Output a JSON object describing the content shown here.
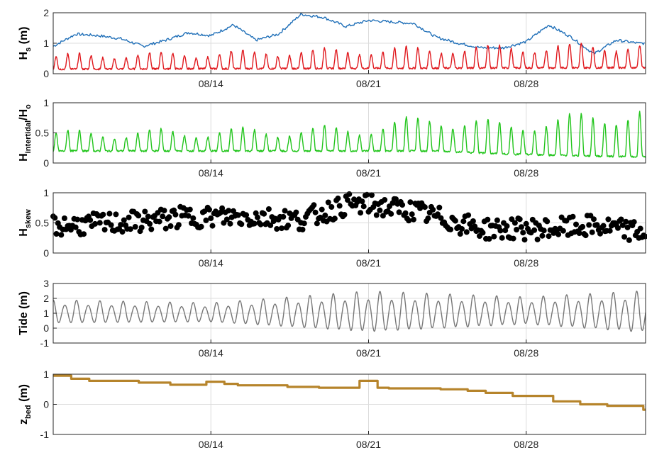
{
  "colors": {
    "hs": "#1f6fb8",
    "hs_infragravity": "#e0191e",
    "hintertidal": "#22c51c",
    "hskew": "#000000",
    "tide": "#777777",
    "zbed": "#b6842b",
    "grid": "#dcdcdc",
    "axis": "#262626"
  },
  "chart_data": [
    {
      "type": "line",
      "ylabel_main": "H",
      "ylabel_sub": "s",
      "ylabel_rest": " (m)",
      "ylim": [
        0,
        2
      ],
      "yticks": [
        0,
        1,
        2
      ],
      "xlim": [
        "08/07",
        "09/02"
      ],
      "xtick_labels": [
        "08/14",
        "08/21",
        "08/28"
      ],
      "grid": true,
      "series": [
        {
          "x_days_from_aug7": [
            0,
            1,
            2,
            3,
            4,
            5,
            6,
            7,
            8,
            9,
            10,
            11,
            12,
            13,
            14,
            15,
            16,
            17,
            18,
            19,
            20,
            21,
            22,
            23,
            24,
            25,
            26
          ],
          "values": [
            0.9,
            1.3,
            1.25,
            1.15,
            0.9,
            1.1,
            1.35,
            1.25,
            1.6,
            1.1,
            1.3,
            1.95,
            1.85,
            1.55,
            1.75,
            1.7,
            1.65,
            1.2,
            1.0,
            0.85,
            0.85,
            1.05,
            1.6,
            1.2,
            0.65,
            1.1,
            1.0
          ]
        },
        {
          "pattern": "diurnal",
          "x_days_from_aug7": [
            0,
            26
          ],
          "peak_values": [
            0.65,
            1.05
          ],
          "trough_values": [
            0.15,
            0.2
          ]
        }
      ]
    },
    {
      "type": "line",
      "ylabel_main": "H",
      "ylabel_sub": "intertidal",
      "ylabel_rest": "/H",
      "ylabel_sub2": "o",
      "ylim": [
        0,
        1
      ],
      "yticks": [
        0,
        0.5,
        1
      ],
      "xlim": [
        "08/07",
        "09/02"
      ],
      "xtick_labels": [
        "08/14",
        "08/21",
        "08/28"
      ],
      "grid": true,
      "series": [
        {
          "pattern": "diurnal",
          "x_days_from_aug7": [
            0,
            10,
            14,
            17,
            20,
            26
          ],
          "peak_values": [
            0.55,
            0.6,
            0.65,
            0.85,
            0.7,
            0.95
          ],
          "trough_values": [
            0.2,
            0.2,
            0.2,
            0.2,
            0.15,
            0.1
          ]
        }
      ]
    },
    {
      "type": "scatter",
      "ylabel_main": "H",
      "ylabel_sub": "skew",
      "ylabel_rest": "",
      "ylim": [
        0,
        1
      ],
      "yticks": [
        0,
        0.5,
        1
      ],
      "xlim": [
        "08/07",
        "09/02"
      ],
      "xtick_labels": [
        "08/14",
        "08/21",
        "08/28"
      ],
      "grid": true,
      "series": [
        {
          "x_days_from_aug7": [
            0,
            3,
            6,
            9,
            11,
            13,
            14,
            16,
            19,
            22,
            24,
            26
          ],
          "mean_values": [
            0.45,
            0.5,
            0.6,
            0.6,
            0.55,
            0.8,
            0.8,
            0.7,
            0.4,
            0.4,
            0.45,
            0.35
          ],
          "spread": 0.18,
          "points_per_day": 14
        }
      ]
    },
    {
      "type": "line",
      "ylabel_main": "Tide (m)",
      "ylabel_sub": "",
      "ylabel_rest": "",
      "ylim": [
        -1,
        3
      ],
      "yticks": [
        -1,
        0,
        1,
        2,
        3
      ],
      "xlim": [
        "08/07",
        "09/02"
      ],
      "xtick_labels": [
        "08/14",
        "08/21",
        "08/28"
      ],
      "grid": true,
      "series": [
        {
          "pattern": "semidiurnal",
          "x_days_from_aug7": [
            0,
            7,
            14,
            21,
            26
          ],
          "high_values": [
            1.9,
            1.7,
            2.5,
            2.1,
            2.5
          ],
          "low_values": [
            0.2,
            0.3,
            -0.5,
            0.1,
            -0.5
          ]
        }
      ]
    },
    {
      "type": "line",
      "ylabel_main": "z",
      "ylabel_sub": "bed",
      "ylabel_rest": " (m)",
      "ylim": [
        -1,
        1
      ],
      "yticks": [
        -1,
        0,
        1
      ],
      "xlim": [
        "08/07",
        "09/02"
      ],
      "xtick_labels": [
        "08/14",
        "08/21",
        "08/28"
      ],
      "grid": true,
      "series": [
        {
          "step": true,
          "x_days_from_aug7": [
            0,
            0.8,
            1.6,
            3.8,
            5.2,
            6.8,
            7.6,
            8.2,
            10.4,
            11.8,
            13.6,
            14.4,
            14.9,
            17.2,
            18.4,
            19.2,
            20.4,
            22.2,
            23.4,
            24.6,
            26.2
          ],
          "values": [
            0.95,
            0.85,
            0.78,
            0.72,
            0.65,
            0.75,
            0.68,
            0.63,
            0.58,
            0.55,
            0.78,
            0.55,
            0.53,
            0.5,
            0.45,
            0.38,
            0.28,
            0.1,
            0.0,
            -0.05,
            -0.18
          ]
        }
      ]
    }
  ]
}
